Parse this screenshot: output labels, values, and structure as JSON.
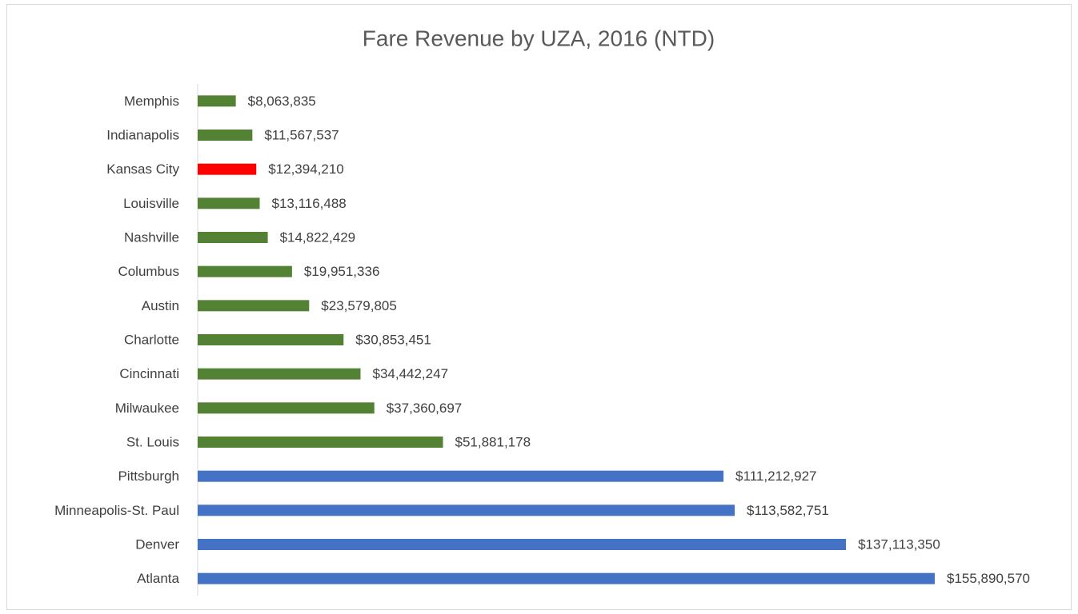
{
  "chart_data": {
    "type": "bar",
    "orientation": "horizontal",
    "title": "Fare Revenue by UZA, 2016 (NTD)",
    "categories": [
      "Memphis",
      "Indianapolis",
      "Kansas City",
      "Louisville",
      "Nashville",
      "Columbus",
      "Austin",
      "Charlotte",
      "Cincinnati",
      "Milwaukee",
      "St. Louis",
      "Pittsburgh",
      "Minneapolis-St. Paul",
      "Denver",
      "Atlanta"
    ],
    "values": [
      8063835,
      11567537,
      12394210,
      13116488,
      14822429,
      19951336,
      23579805,
      30853451,
      34442247,
      37360697,
      51881178,
      111212927,
      113582751,
      137113350,
      155890570
    ],
    "value_labels": [
      "$8,063,835",
      "$11,567,537",
      "$12,394,210",
      "$13,116,488",
      "$14,822,429",
      "$19,951,336",
      "$23,579,805",
      "$30,853,451",
      "$34,442,247",
      "$37,360,697",
      "$51,881,178",
      "$111,212,927",
      "$113,582,751",
      "$137,113,350",
      "$155,890,570"
    ],
    "colors": [
      "#548235",
      "#548235",
      "#ff0000",
      "#548235",
      "#548235",
      "#548235",
      "#548235",
      "#548235",
      "#548235",
      "#548235",
      "#548235",
      "#4472c4",
      "#4472c4",
      "#4472c4",
      "#4472c4"
    ],
    "xlim": [
      0,
      180000000
    ]
  }
}
